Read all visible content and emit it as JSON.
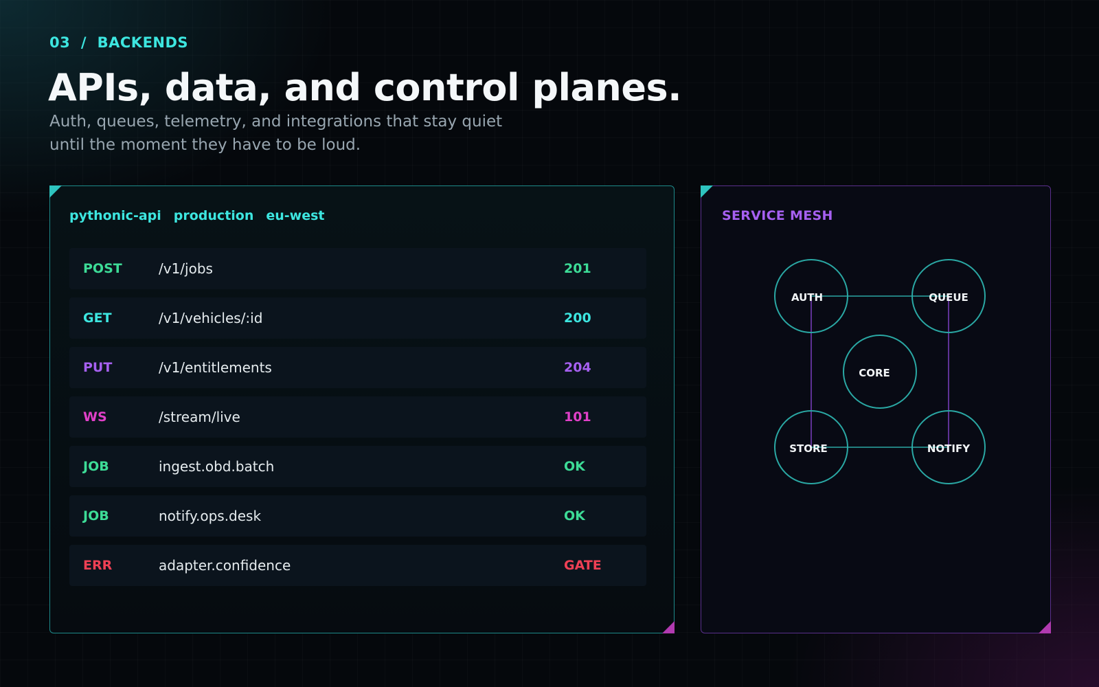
{
  "kicker": "03  /  BACKENDS",
  "title": "APIs, data, and control planes.",
  "subtitle": "Auth, queues, telemetry, and integrations that stay quiet until the moment they have to be loud.",
  "colors": {
    "accent_cyan": "#3de6e0",
    "accent_green": "#3ddc97",
    "accent_purple": "#a660f0",
    "accent_magenta": "#e040c8",
    "accent_red": "#ef4055"
  },
  "api_panel": {
    "tags": [
      "pythonic-api",
      "production",
      "eu-west"
    ],
    "rows": [
      {
        "method": "POST",
        "path": "/v1/jobs",
        "status": "201",
        "color": "#3ddc97"
      },
      {
        "method": "GET",
        "path": "/v1/vehicles/:id",
        "status": "200",
        "color": "#3de6e0"
      },
      {
        "method": "PUT",
        "path": "/v1/entitlements",
        "status": "204",
        "color": "#a660f0"
      },
      {
        "method": "WS",
        "path": "/stream/live",
        "status": "101",
        "color": "#e040c8"
      },
      {
        "method": "JOB",
        "path": "ingest.obd.batch",
        "status": "OK",
        "color": "#3ddc97"
      },
      {
        "method": "JOB",
        "path": "notify.ops.desk",
        "status": "OK",
        "color": "#3ddc97"
      },
      {
        "method": "ERR",
        "path": "adapter.confidence",
        "status": "GATE",
        "color": "#ef4055"
      }
    ]
  },
  "mesh_panel": {
    "label": "SERVICE MESH",
    "nodes": [
      "AUTH",
      "QUEUE",
      "CORE",
      "STORE",
      "NOTIFY"
    ]
  }
}
